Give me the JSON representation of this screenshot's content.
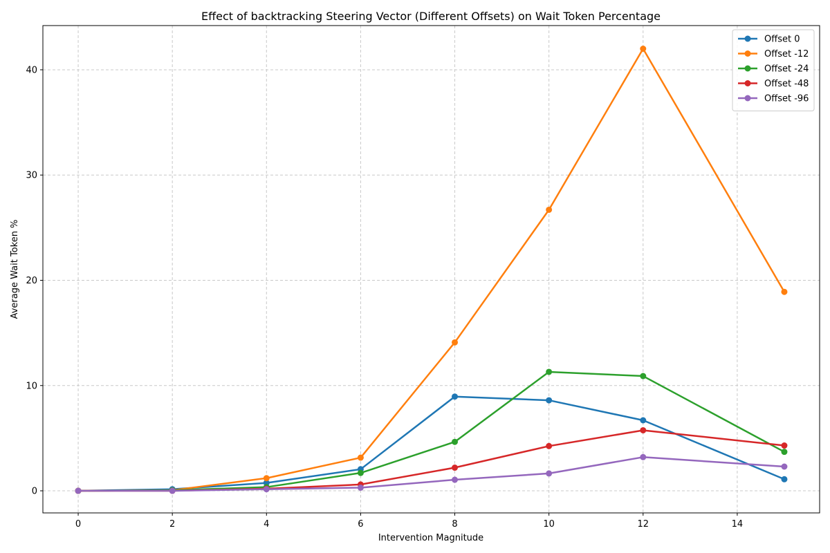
{
  "chart_data": {
    "type": "line",
    "title": "Effect of backtracking Steering Vector (Different Offsets) on Wait Token Percentage",
    "xlabel": "Intervention Magnitude",
    "ylabel": "Average Wait Token %",
    "x": [
      0,
      2,
      4,
      6,
      8,
      10,
      12,
      15
    ],
    "xlim": [
      -0.75,
      15.75
    ],
    "ylim": [
      -2.1,
      44.2
    ],
    "xticks": [
      0,
      2,
      4,
      6,
      8,
      10,
      12,
      14
    ],
    "yticks": [
      0,
      10,
      20,
      30,
      40
    ],
    "grid": true,
    "legend_position": "top-right",
    "series": [
      {
        "name": "Offset 0",
        "color": "#1f77b4",
        "values": [
          0,
          0.15,
          0.75,
          2.05,
          8.95,
          8.6,
          6.7,
          1.1
        ]
      },
      {
        "name": "Offset -12",
        "color": "#ff7f0e",
        "values": [
          0,
          0.05,
          1.2,
          3.15,
          14.1,
          26.7,
          42.0,
          18.9
        ]
      },
      {
        "name": "Offset -24",
        "color": "#2ca02c",
        "values": [
          0,
          0.05,
          0.35,
          1.7,
          4.65,
          11.3,
          10.9,
          3.7
        ]
      },
      {
        "name": "Offset -48",
        "color": "#d62728",
        "values": [
          0,
          0.0,
          0.2,
          0.6,
          2.2,
          4.25,
          5.75,
          4.3
        ]
      },
      {
        "name": "Offset -96",
        "color": "#9467bd",
        "values": [
          0,
          0.0,
          0.15,
          0.3,
          1.05,
          1.65,
          3.2,
          2.3
        ]
      }
    ]
  }
}
